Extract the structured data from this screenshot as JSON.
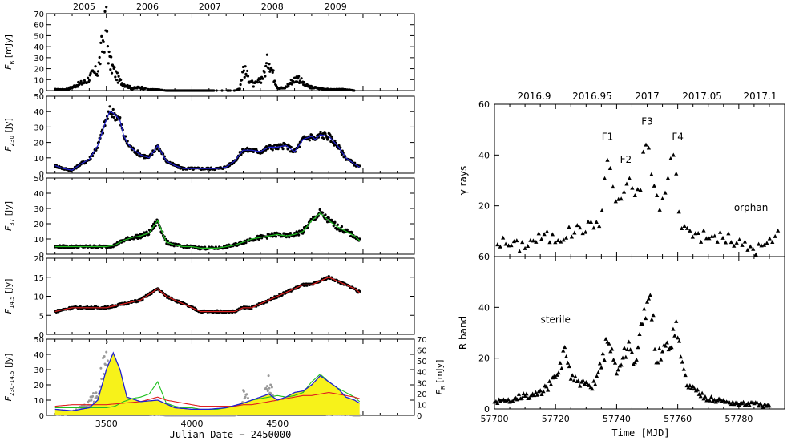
{
  "chart_data": [
    {
      "type": "scatter",
      "panels": [
        {
          "ylabel_main": "F",
          "ylabel_sub": "R",
          "ylabel_unit": " [mJy]",
          "ylim": [
            0,
            70
          ],
          "yticks": [
            "0",
            "10",
            "20",
            "30",
            "40",
            "50",
            "60",
            "70"
          ]
        },
        {
          "ylabel_main": "F",
          "ylabel_sub": "230",
          "ylabel_unit": " [Jy]",
          "ylim": [
            0,
            50
          ],
          "yticks": [
            "0",
            "10",
            "20",
            "30",
            "40",
            "50"
          ],
          "line_color": "#2020d0"
        },
        {
          "ylabel_main": "F",
          "ylabel_sub": "37",
          "ylabel_unit": " [Jy]",
          "ylim": [
            0,
            50
          ],
          "yticks": [
            "0",
            "10",
            "20",
            "30",
            "40",
            "50"
          ],
          "line_color": "#20c020"
        },
        {
          "ylabel_main": "F",
          "ylabel_sub": "14.5",
          "ylabel_unit": " [Jy]",
          "ylim": [
            0,
            20
          ],
          "yticks": [
            "0",
            "5",
            "10",
            "15",
            "20"
          ],
          "line_color": "#e02020"
        },
        {
          "ylabel_main": "F",
          "ylabel_sub": "230-14.5",
          "ylabel_unit": " [Jy]",
          "ylim": [
            0,
            50
          ],
          "yticks": [
            "0",
            "10",
            "20",
            "30",
            "40",
            "50"
          ],
          "right_ylabel_main": "F",
          "right_ylabel_sub": "R",
          "right_ylabel_unit": " [mJy]",
          "right_yticks": [
            "0",
            "10",
            "20",
            "30",
            "40",
            "50",
            "60",
            "70"
          ]
        }
      ],
      "xlabel": "Julian Date − 2450000",
      "xlim": [
        3150,
        5300
      ],
      "xticks": [
        "3500",
        "4000",
        "4500"
      ],
      "top_xticks": [
        "2005",
        "2006",
        "2007",
        "2008",
        "2009"
      ],
      "series": [
        {
          "values": {
            "x": [
              3200,
              3260,
              3300,
              3340,
              3380,
              3420,
              3450,
              3500,
              3510,
              3520,
              3540,
              3570,
              3600,
              3650,
              3700,
              3750,
              3800,
              3850,
              3900,
              3950,
              4000,
              4050,
              4100,
              4150,
              4200,
              4250,
              4280,
              4300,
              4330,
              4360,
              4390,
              4420,
              4450,
              4480,
              4500,
              4540,
              4580,
              4620,
              4660,
              4700,
              4750,
              4800,
              4850,
              4900,
              4950
            ],
            "y": [
              1,
              1,
              3,
              6,
              8,
              15,
              18,
              62,
              38,
              25,
              20,
              10,
              6,
              2,
              3,
              1,
              1,
              0,
              0,
              0,
              0,
              0,
              0,
              0,
              0,
              0,
              2,
              20,
              12,
              5,
              8,
              14,
              30,
              12,
              3,
              2,
              8,
              12,
              5,
              3,
              2,
              1,
              1,
              1,
              0
            ]
          }
        },
        {
          "values": {
            "x": [
              3200,
              3250,
              3300,
              3350,
              3400,
              3450,
              3500,
              3520,
              3540,
              3560,
              3580,
              3600,
              3620,
              3650,
              3700,
              3750,
              3800,
              3850,
              3900,
              3950,
              4000,
              4050,
              4100,
              4150,
              4200,
              4250,
              4300,
              4350,
              4400,
              4450,
              4500,
              4550,
              4600,
              4650,
              4700,
              4720,
              4750,
              4800,
              4850,
              4900,
              4950,
              4980
            ],
            "y": [
              5,
              3,
              2,
              6,
              9,
              18,
              35,
              40,
              39,
              37,
              34,
              25,
              20,
              16,
              12,
              10,
              18,
              8,
              5,
              3,
              3,
              3,
              3,
              3,
              4,
              8,
              15,
              15,
              14,
              17,
              17,
              18,
              14,
              22,
              24,
              22,
              25,
              24,
              18,
              10,
              6,
              4
            ]
          }
        },
        {
          "values": {
            "x": [
              3200,
              3300,
              3400,
              3500,
              3550,
              3600,
              3650,
              3700,
              3750,
              3800,
              3850,
              3900,
              3950,
              4000,
              4050,
              4100,
              4150,
              4200,
              4250,
              4300,
              4350,
              4400,
              4450,
              4500,
              4550,
              4600,
              4650,
              4700,
              4750,
              4800,
              4850,
              4900,
              4950,
              4980
            ],
            "y": [
              5,
              5,
              5,
              5,
              6,
              9,
              11,
              12,
              14,
              22,
              8,
              6,
              5,
              5,
              4,
              4,
              4,
              5,
              6,
              8,
              10,
              11,
              12,
              13,
              12,
              13,
              15,
              22,
              27,
              22,
              18,
              15,
              12,
              9
            ]
          }
        },
        {
          "values": {
            "x": [
              3200,
              3300,
              3400,
              3500,
              3600,
              3700,
              3800,
              3850,
              3900,
              3950,
              4000,
              4050,
              4100,
              4150,
              4200,
              4250,
              4300,
              4350,
              4400,
              4450,
              4500,
              4550,
              4600,
              4650,
              4700,
              4750,
              4800,
              4850,
              4900,
              4950,
              4980
            ],
            "y": [
              6,
              7,
              7,
              7,
              8,
              9,
              12,
              10,
              9,
              8,
              7,
              6,
              6,
              6,
              6,
              6,
              7,
              7,
              8,
              9,
              10,
              11,
              12,
              13,
              13,
              14,
              15,
              14,
              13,
              12,
              11
            ]
          }
        },
        {
          "values": {
            "x": [
              3200,
              3300,
              3400,
              3450,
              3500,
              3540,
              3580,
              3620,
              3700,
              3800,
              3900,
              4000,
              4100,
              4200,
              4300,
              4400,
              4450,
              4500,
              4550,
              4600,
              4650,
              4700,
              4750,
              4800,
              4850,
              4900,
              4950,
              4980
            ],
            "y": [
              4,
              3,
              5,
              10,
              30,
              41,
              30,
              12,
              9,
              10,
              5,
              4,
              4,
              5,
              8,
              12,
              14,
              10,
              12,
              15,
              16,
              20,
              26,
              22,
              18,
              12,
              10,
              8
            ]
          }
        }
      ]
    },
    {
      "type": "scatter",
      "xlabel": "Time [MJD]",
      "xlim": [
        57700,
        57795
      ],
      "xticks": [
        "57700",
        "57720",
        "57740",
        "57760",
        "57780"
      ],
      "top_xticks": [
        "2016.9",
        "2016.95",
        "2017",
        "2017.05",
        "2017.1"
      ],
      "panels": [
        {
          "ylabel": "γ rays",
          "ylim": [
            0,
            60
          ],
          "yticks": [
            "20",
            "40",
            "60"
          ]
        },
        {
          "ylabel": "R band",
          "ylim": [
            0,
            60
          ],
          "yticks": [
            "0",
            "20",
            "40",
            "60"
          ]
        }
      ],
      "annotations": [
        "F1",
        "F2",
        "F3",
        "F4",
        "orphan",
        "sterile"
      ],
      "series": [
        {
          "values": {
            "x": [
              57701,
              57704,
              57708,
              57712,
              57716,
              57720,
              57724,
              57728,
              57732,
              57735,
              57737,
              57740,
              57742,
              57744,
              57746,
              57748,
              57749,
              57750,
              57751,
              57752,
              57753,
              57754,
              57756,
              57758,
              57759,
              57760,
              57761,
              57763,
              57766,
              57770,
              57774,
              57778,
              57782,
              57786,
              57790,
              57793
            ],
            "y": [
              6,
              5,
              4,
              6,
              8,
              7,
              9,
              11,
              12,
              15,
              40,
              20,
              24,
              32,
              22,
              28,
              45,
              47,
              35,
              30,
              23,
              20,
              25,
              40,
              40,
              22,
              14,
              10,
              9,
              7,
              8,
              6,
              4,
              3,
              5,
              10
            ]
          }
        },
        {
          "values": {
            "x": [
              57700,
              57704,
              57708,
              57712,
              57716,
              57720,
              57722,
              57723,
              57725,
              57728,
              57732,
              57736,
              57737,
              57738,
              57740,
              57742,
              57744,
              57745,
              57746,
              57748,
              57750,
              57751,
              57752,
              57753,
              57755,
              57757,
              57758,
              57759,
              57760,
              57761,
              57763,
              57766,
              57770,
              57775,
              57780,
              57785,
              57790
            ],
            "y": [
              3,
              3,
              5,
              5,
              7,
              12,
              18,
              25,
              12,
              10,
              8,
              22,
              27,
              24,
              15,
              20,
              25,
              22,
              18,
              30,
              45,
              40,
              33,
              20,
              22,
              25,
              28,
              33,
              30,
              20,
              10,
              7,
              4,
              3,
              2,
              2,
              1
            ]
          }
        }
      ]
    }
  ]
}
